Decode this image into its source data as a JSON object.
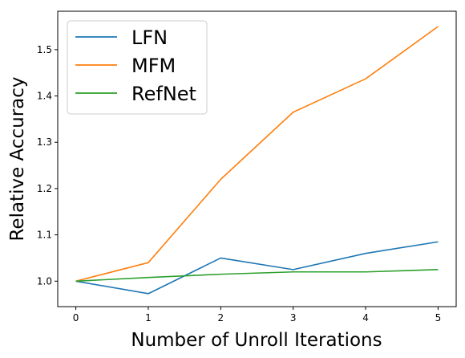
{
  "chart_data": {
    "type": "line",
    "xlabel": "Number of Unroll Iterations",
    "ylabel": "Relative Accuracy",
    "x": [
      0,
      1,
      2,
      3,
      4,
      5
    ],
    "xlim": [
      -0.25,
      5.25
    ],
    "ylim": [
      0.945,
      1.583
    ],
    "xticks": [
      "0",
      "1",
      "2",
      "3",
      "4",
      "5"
    ],
    "yticks": [
      "1.0",
      "1.1",
      "1.2",
      "1.3",
      "1.4",
      "1.5"
    ],
    "grid": false,
    "legend_position": "upper-left",
    "series": [
      {
        "name": "LFN",
        "color": "#1f77b4",
        "values": [
          1.0,
          0.973,
          1.05,
          1.025,
          1.06,
          1.085
        ]
      },
      {
        "name": "MFM",
        "color": "#ff7f0e",
        "values": [
          1.0,
          1.04,
          1.22,
          1.365,
          1.437,
          1.55
        ]
      },
      {
        "name": "RefNet",
        "color": "#2ca02c",
        "values": [
          1.0,
          1.008,
          1.015,
          1.02,
          1.02,
          1.025
        ]
      }
    ]
  }
}
